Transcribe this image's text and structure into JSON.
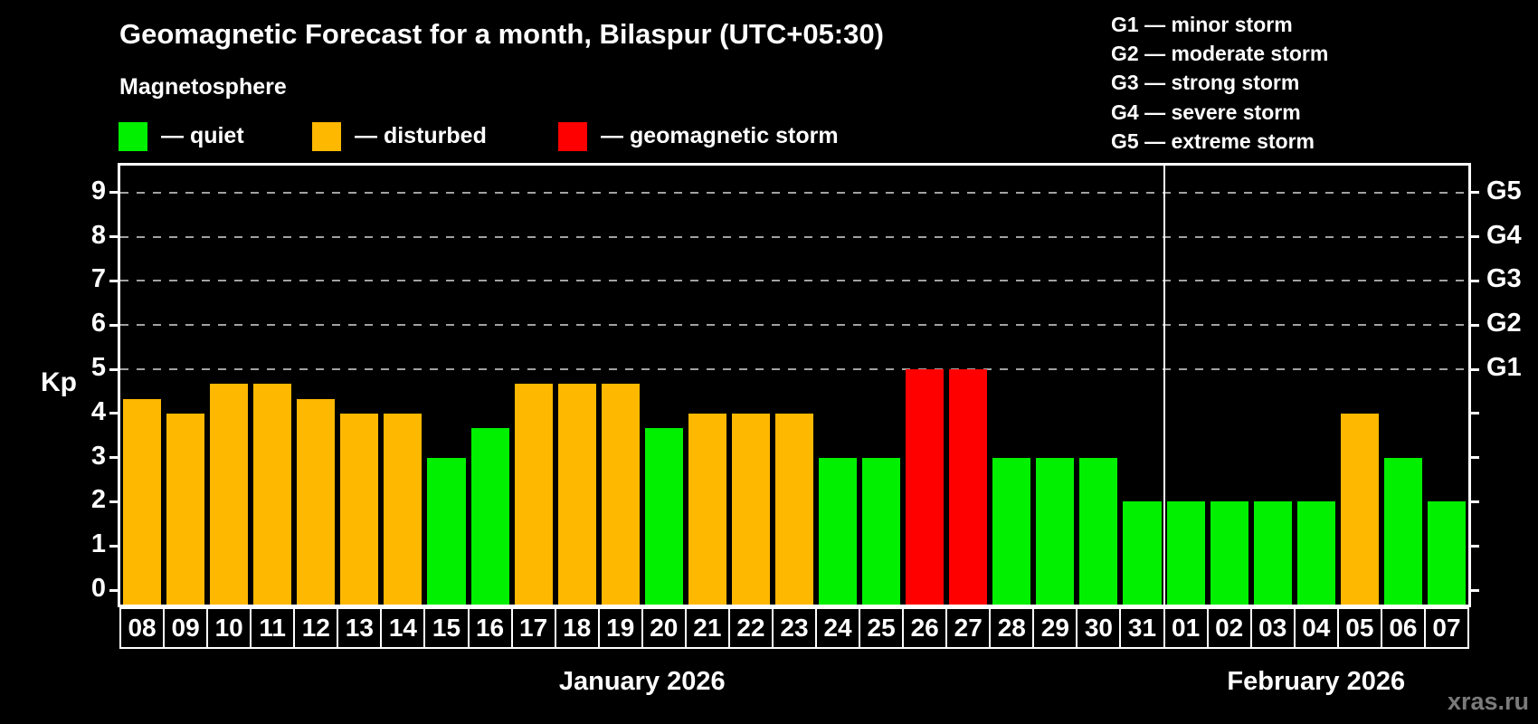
{
  "title": "Geomagnetic Forecast for a month, Bilaspur (UTC+05:30)",
  "subtitle": "Magnetosphere",
  "watermark": "xras.ru",
  "legend": {
    "items": [
      {
        "name": "quiet",
        "label": "— quiet",
        "color": "#00f000"
      },
      {
        "name": "disturbed",
        "label": "— disturbed",
        "color": "#ffb800"
      },
      {
        "name": "storm",
        "label": "— geomagnetic storm",
        "color": "#ff0000"
      }
    ]
  },
  "storm_scale_legend": [
    "G1 — minor storm",
    "G2 — moderate storm",
    "G3 — strong storm",
    "G4 — severe storm",
    "G5 — extreme storm"
  ],
  "chart_data": {
    "type": "bar",
    "ylabel": "Kp",
    "ylim": [
      0,
      9.6
    ],
    "yticks": [
      0,
      1,
      2,
      3,
      4,
      5,
      6,
      7,
      8,
      9
    ],
    "gridlines_at": [
      5,
      6,
      7,
      8,
      9
    ],
    "grid": "dashed",
    "legend_position": "top-left",
    "right_axis": [
      {
        "kp": 5,
        "label": "G1"
      },
      {
        "kp": 6,
        "label": "G2"
      },
      {
        "kp": 7,
        "label": "G3"
      },
      {
        "kp": 8,
        "label": "G4"
      },
      {
        "kp": 9,
        "label": "G5"
      }
    ],
    "categories": [
      "08",
      "09",
      "10",
      "11",
      "12",
      "13",
      "14",
      "15",
      "16",
      "17",
      "18",
      "19",
      "20",
      "21",
      "22",
      "23",
      "24",
      "25",
      "26",
      "27",
      "28",
      "29",
      "30",
      "31",
      "01",
      "02",
      "03",
      "04",
      "05",
      "06",
      "07"
    ],
    "values": [
      4.33,
      4,
      4.67,
      4.67,
      4.33,
      4,
      4,
      3,
      3.67,
      4.67,
      4.67,
      4.67,
      3.67,
      4,
      4,
      4,
      3,
      3,
      5,
      5,
      3,
      3,
      3,
      2,
      2,
      2,
      2,
      2,
      4,
      3,
      2
    ],
    "statuses": [
      "disturbed",
      "disturbed",
      "disturbed",
      "disturbed",
      "disturbed",
      "disturbed",
      "disturbed",
      "quiet",
      "quiet",
      "disturbed",
      "disturbed",
      "disturbed",
      "quiet",
      "disturbed",
      "disturbed",
      "disturbed",
      "quiet",
      "quiet",
      "storm",
      "storm",
      "quiet",
      "quiet",
      "quiet",
      "quiet",
      "quiet",
      "quiet",
      "quiet",
      "quiet",
      "disturbed",
      "quiet",
      "quiet"
    ],
    "colors": {
      "quiet": "#00f000",
      "disturbed": "#ffb800",
      "storm": "#ff0000"
    },
    "months": [
      {
        "label": "January 2026",
        "start_index": 0,
        "end_index": 23
      },
      {
        "label": "February 2026",
        "start_index": 24,
        "end_index": 30
      }
    ]
  }
}
